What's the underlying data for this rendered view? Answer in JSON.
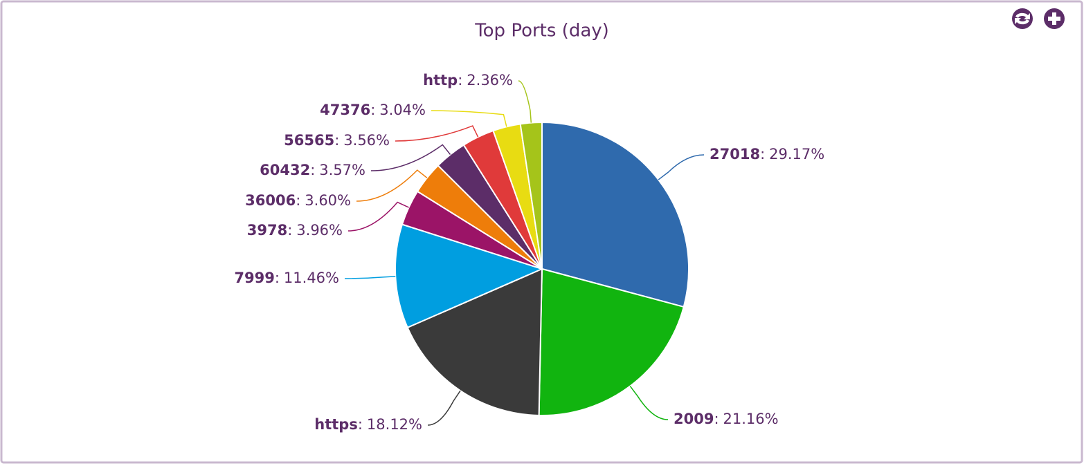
{
  "chart_data": {
    "type": "pie",
    "title": "Top Ports (day)",
    "label_separator": ":",
    "categories": [
      "27018",
      "2009",
      "https",
      "7999",
      "3978",
      "36006",
      "60432",
      "56565",
      "47376",
      "http"
    ],
    "values": [
      29.17,
      21.16,
      18.12,
      11.46,
      3.96,
      3.6,
      3.57,
      3.56,
      3.04,
      2.36
    ],
    "value_labels": [
      "29.17%",
      "21.16%",
      "18.12%",
      "11.46%",
      "3.96%",
      "3.60%",
      "3.57%",
      "3.56%",
      "3.04%",
      "2.36%"
    ],
    "colors": [
      "#2f6aad",
      "#11b40f",
      "#3a3a3a",
      "#009ee0",
      "#9b1467",
      "#ee7d0a",
      "#5c2d68",
      "#e03a3a",
      "#e8dc12",
      "#a5c41a"
    ]
  }
}
